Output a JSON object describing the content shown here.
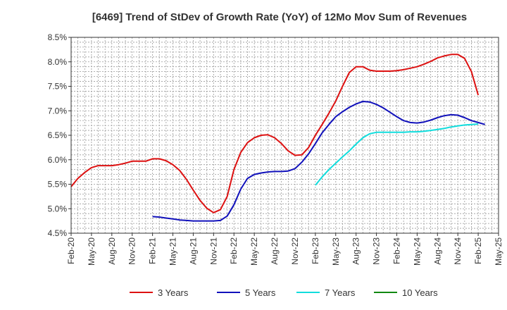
{
  "chart_data": {
    "type": "line",
    "title": "[6469]  Trend of StDev of Growth Rate (YoY) of 12Mo Mov Sum of Revenues",
    "xlabel": "",
    "ylabel": "",
    "ylim": [
      4.5,
      8.5
    ],
    "y_ticks": [
      "4.5%",
      "5.0%",
      "5.5%",
      "6.0%",
      "6.5%",
      "7.0%",
      "7.5%",
      "8.0%",
      "8.5%"
    ],
    "x_ticks": [
      "Feb-20",
      "May-20",
      "Aug-20",
      "Nov-20",
      "Feb-21",
      "May-21",
      "Aug-21",
      "Nov-21",
      "Feb-22",
      "May-22",
      "Aug-22",
      "Nov-22",
      "Feb-23",
      "May-23",
      "Aug-23",
      "Nov-23",
      "Feb-24",
      "May-24",
      "Aug-24",
      "Nov-24",
      "Feb-25",
      "May-25"
    ],
    "grid": true,
    "legend_position": "bottom",
    "series": [
      {
        "name": "3 Years",
        "color": "#dd1111",
        "start_index": 0,
        "values": [
          5.45,
          5.62,
          5.74,
          5.84,
          5.88,
          5.88,
          5.88,
          5.9,
          5.93,
          5.97,
          5.97,
          5.97,
          6.02,
          6.02,
          5.98,
          5.9,
          5.78,
          5.6,
          5.38,
          5.17,
          5.01,
          4.92,
          4.98,
          5.25,
          5.8,
          6.15,
          6.35,
          6.45,
          6.5,
          6.51,
          6.45,
          6.33,
          6.18,
          6.09,
          6.1,
          6.25,
          6.5,
          6.72,
          6.95,
          7.2,
          7.5,
          7.78,
          7.9,
          7.9,
          7.83,
          7.81,
          7.81,
          7.81,
          7.82,
          7.84,
          7.87,
          7.9,
          7.95,
          8.01,
          8.08,
          8.12,
          8.15,
          8.15,
          8.07,
          7.8,
          7.32
        ]
      },
      {
        "name": "5 Years",
        "color": "#1111bb",
        "start_index": 12,
        "values": [
          4.84,
          4.83,
          4.81,
          4.79,
          4.77,
          4.76,
          4.75,
          4.75,
          4.75,
          4.75,
          4.76,
          4.85,
          5.08,
          5.4,
          5.62,
          5.7,
          5.73,
          5.75,
          5.76,
          5.76,
          5.77,
          5.82,
          5.95,
          6.12,
          6.33,
          6.55,
          6.72,
          6.88,
          6.98,
          7.07,
          7.14,
          7.19,
          7.18,
          7.13,
          7.06,
          6.97,
          6.88,
          6.8,
          6.76,
          6.75,
          6.77,
          6.81,
          6.86,
          6.9,
          6.92,
          6.91,
          6.86,
          6.8,
          6.76,
          6.72
        ]
      },
      {
        "name": "7 Years",
        "color": "#11dddd",
        "start_index": 36,
        "values": [
          5.48,
          5.65,
          5.8,
          5.93,
          6.06,
          6.18,
          6.32,
          6.45,
          6.53,
          6.56,
          6.56,
          6.56,
          6.56,
          6.56,
          6.57,
          6.57,
          6.58,
          6.6,
          6.62,
          6.64,
          6.67,
          6.69,
          6.71,
          6.72,
          6.73
        ]
      },
      {
        "name": "10 Years",
        "color": "#118811",
        "start_index": 0,
        "values": []
      }
    ]
  }
}
